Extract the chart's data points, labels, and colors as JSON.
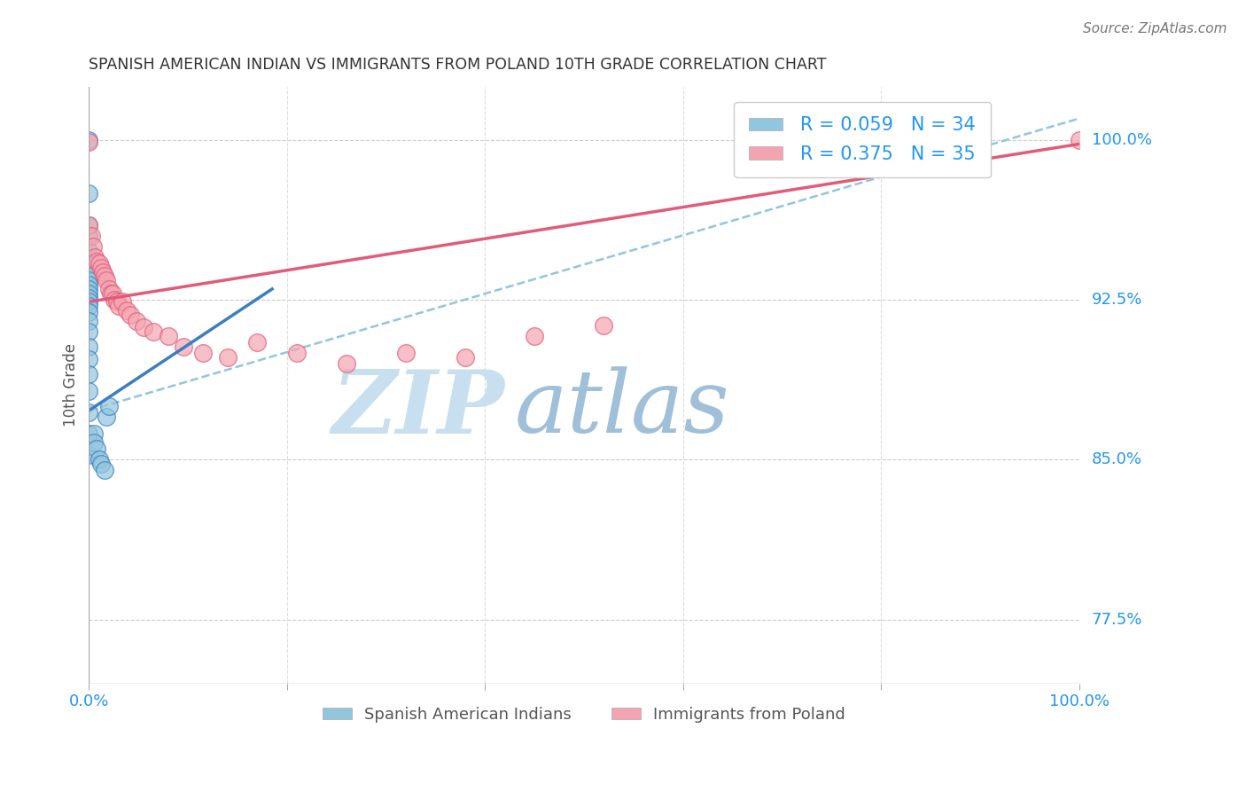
{
  "title": "SPANISH AMERICAN INDIAN VS IMMIGRANTS FROM POLAND 10TH GRADE CORRELATION CHART",
  "source": "Source: ZipAtlas.com",
  "ylabel": "10th Grade",
  "ytick_labels": [
    "77.5%",
    "85.0%",
    "92.5%",
    "100.0%"
  ],
  "ytick_values": [
    0.775,
    0.85,
    0.925,
    1.0
  ],
  "legend_blue_label": "R = 0.059   N = 34",
  "legend_pink_label": "R = 0.375   N = 35",
  "legend1_label": "Spanish American Indians",
  "legend2_label": "Immigrants from Poland",
  "blue_color": "#92c5de",
  "pink_color": "#f4a4b0",
  "blue_line_color": "#3a7fc1",
  "pink_line_color": "#e05c7a",
  "dashed_line_color": "#92c5de",
  "watermark_zip_color": "#c8dff0",
  "watermark_atlas_color": "#a0bfd8",
  "blue_scatter_x": [
    0.0,
    0.0,
    0.0,
    0.0,
    0.0,
    0.0,
    0.0,
    0.0,
    0.0,
    0.0,
    0.0,
    0.0,
    0.0,
    0.0,
    0.0,
    0.0,
    0.0,
    0.0,
    0.0,
    0.0,
    0.0,
    0.0,
    0.0,
    0.0,
    0.0,
    0.0,
    0.005,
    0.005,
    0.008,
    0.01,
    0.012,
    0.016,
    0.018,
    0.02
  ],
  "blue_scatter_y": [
    1.0,
    0.975,
    0.96,
    0.955,
    0.948,
    0.944,
    0.941,
    0.938,
    0.936,
    0.934,
    0.932,
    0.93,
    0.928,
    0.926,
    0.924,
    0.922,
    0.919,
    0.915,
    0.91,
    0.903,
    0.897,
    0.89,
    0.882,
    0.872,
    0.862,
    0.852,
    0.862,
    0.858,
    0.855,
    0.85,
    0.848,
    0.845,
    0.87,
    0.875
  ],
  "pink_scatter_x": [
    0.0,
    0.0,
    0.002,
    0.004,
    0.006,
    0.008,
    0.01,
    0.012,
    0.014,
    0.016,
    0.018,
    0.02,
    0.022,
    0.024,
    0.026,
    0.028,
    0.03,
    0.034,
    0.038,
    0.042,
    0.048,
    0.055,
    0.065,
    0.08,
    0.095,
    0.115,
    0.14,
    0.17,
    0.21,
    0.26,
    0.32,
    0.38,
    0.45,
    0.52,
    1.0
  ],
  "pink_scatter_y": [
    0.999,
    0.96,
    0.955,
    0.95,
    0.945,
    0.943,
    0.942,
    0.94,
    0.938,
    0.936,
    0.934,
    0.93,
    0.928,
    0.928,
    0.925,
    0.924,
    0.922,
    0.924,
    0.92,
    0.918,
    0.915,
    0.912,
    0.91,
    0.908,
    0.903,
    0.9,
    0.898,
    0.905,
    0.9,
    0.895,
    0.9,
    0.898,
    0.908,
    0.913,
    1.0
  ],
  "blue_line_x0": 0.0,
  "blue_line_y0": 0.873,
  "blue_line_x1": 0.185,
  "blue_line_y1": 0.93,
  "pink_line_x0": 0.0,
  "pink_line_y0": 0.924,
  "pink_line_x1": 1.0,
  "pink_line_y1": 0.998,
  "dash_line_x0": 0.0,
  "dash_line_y0": 0.873,
  "dash_line_x1": 1.0,
  "dash_line_y1": 1.01,
  "xlim": [
    0.0,
    1.0
  ],
  "ylim": [
    0.745,
    1.025
  ]
}
